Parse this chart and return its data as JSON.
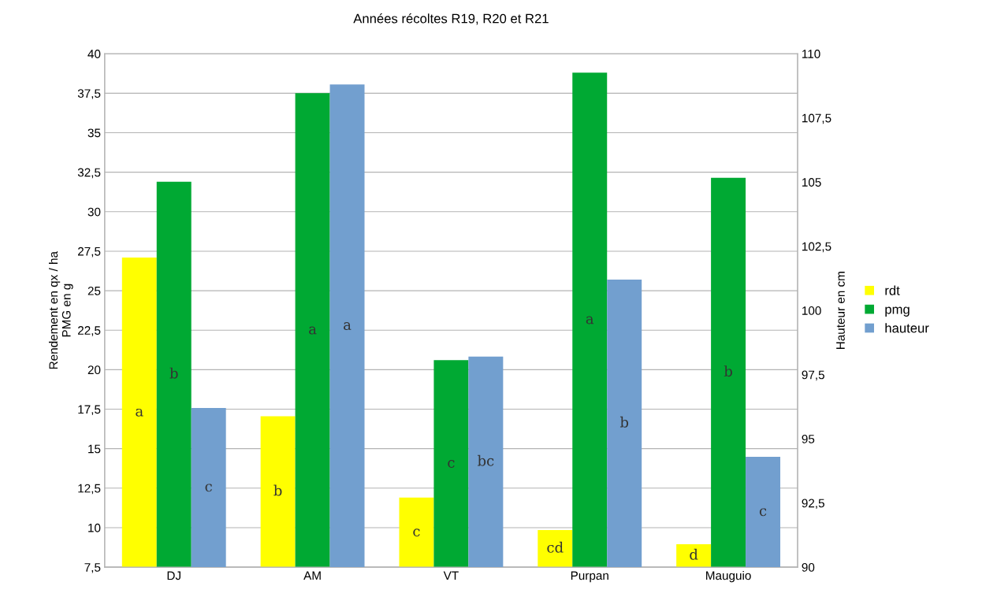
{
  "chart_data": {
    "type": "bar",
    "title": "Années récoltes R19, R20 et R21",
    "ylabel": "Rendement en qx / ha\nPMG en g",
    "y2label": "Hauteur en cm",
    "categories": [
      "DJ",
      "AM",
      "VT",
      "Purpan",
      "Mauguio"
    ],
    "series": [
      {
        "name": "rdt",
        "color": "#ffff00",
        "values": [
          27.1,
          17.05,
          11.9,
          9.85,
          8.95
        ],
        "value_labels": [
          "a",
          "b",
          "c",
          "cd",
          "d"
        ]
      },
      {
        "name": "pmg",
        "color": "#00a933",
        "values": [
          31.9,
          37.5,
          20.6,
          38.8,
          32.15
        ],
        "value_labels": [
          "b",
          "a",
          "c",
          "a",
          "b"
        ]
      },
      {
        "name": "hauteur",
        "color": "#729fcf",
        "axis": "y2",
        "values": [
          96.2,
          108.8,
          98.2,
          101.2,
          94.3
        ],
        "value_labels": [
          "c",
          "a",
          "bc",
          "b",
          "c"
        ]
      }
    ],
    "ylim": [
      7.5,
      40
    ],
    "yticks": [
      {
        "value": 7.5,
        "label": "7,5"
      },
      10,
      {
        "value": 12.5,
        "label": "12,5"
      },
      15,
      {
        "value": 17.5,
        "label": "17,5"
      },
      20,
      {
        "value": 22.5,
        "label": "22,5"
      },
      25,
      {
        "value": 27.5,
        "label": "27,5"
      },
      30,
      {
        "value": 32.5,
        "label": "32,5"
      },
      35,
      {
        "value": 37.5,
        "label": "37,5"
      },
      40
    ],
    "y2lim": [
      90,
      110
    ],
    "y2ticks": [
      90,
      {
        "value": 92.5,
        "label": "92,5"
      },
      95,
      {
        "value": 97.5,
        "label": "97,5"
      },
      100,
      {
        "value": 102.5,
        "label": "102,5"
      },
      105,
      {
        "value": 107.5,
        "label": "107,5"
      },
      110
    ],
    "grid": "y",
    "legend": "right"
  }
}
